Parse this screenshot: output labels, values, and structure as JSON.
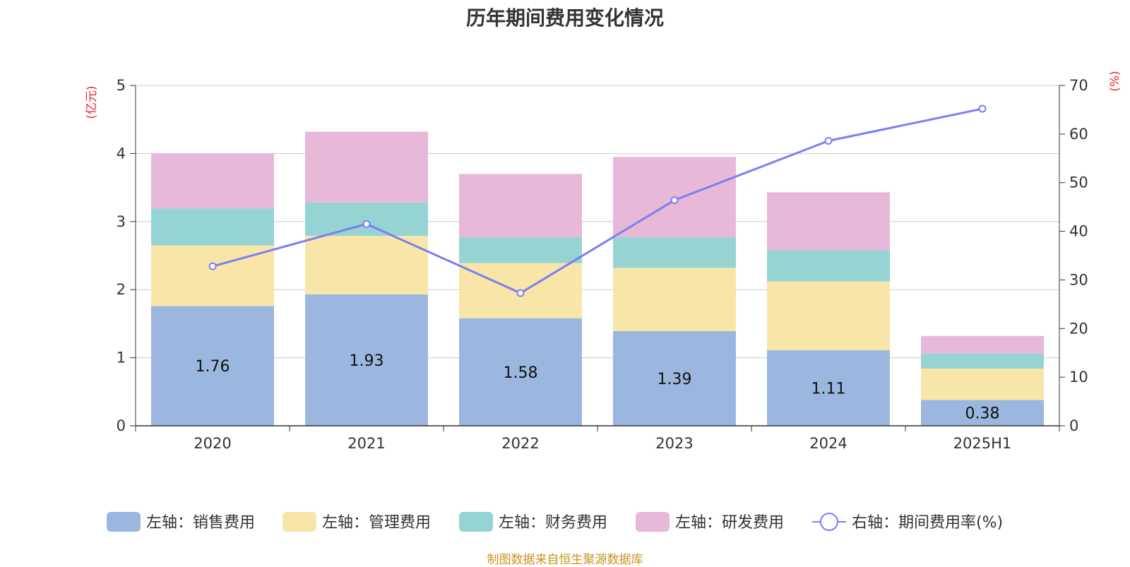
{
  "chart_data": {
    "type": "bar",
    "title": "历年期间费用变化情况",
    "categories": [
      "2020",
      "2021",
      "2022",
      "2023",
      "2024",
      "2025H1"
    ],
    "stacked": true,
    "left_axis": {
      "unit": "(亿元)",
      "ylim": [
        0,
        5
      ],
      "ticks": [
        "0",
        "1",
        "2",
        "3",
        "4",
        "5"
      ]
    },
    "right_axis": {
      "unit": "(%)",
      "ylim": [
        0,
        70
      ],
      "ticks": [
        "0",
        "10",
        "20",
        "30",
        "40",
        "50",
        "60",
        "70"
      ]
    },
    "series": [
      {
        "name": "左轴：销售费用",
        "type": "bar",
        "axis": "left",
        "color": "#9bb7e0",
        "values": [
          1.76,
          1.93,
          1.58,
          1.39,
          1.11,
          0.38
        ],
        "labels": [
          "1.76",
          "1.93",
          "1.58",
          "1.39",
          "1.11",
          "0.38"
        ]
      },
      {
        "name": "左轴：管理费用",
        "type": "bar",
        "axis": "left",
        "color": "#f8e6a8",
        "values": [
          0.89,
          0.86,
          0.81,
          0.93,
          1.01,
          0.46
        ]
      },
      {
        "name": "左轴：财务费用",
        "type": "bar",
        "axis": "left",
        "color": "#96d4d4",
        "values": [
          0.54,
          0.49,
          0.38,
          0.45,
          0.46,
          0.22
        ]
      },
      {
        "name": "左轴：研发费用",
        "type": "bar",
        "axis": "left",
        "color": "#e8b8d8",
        "values": [
          0.81,
          1.04,
          0.93,
          1.18,
          0.85,
          0.26
        ]
      },
      {
        "name": "右轴：期间费用率(%)",
        "type": "line",
        "axis": "right",
        "color": "#7b7ff0",
        "values": [
          32.8,
          41.5,
          27.3,
          46.4,
          58.6,
          65.2
        ]
      }
    ],
    "grid": true,
    "legend_position": "bottom"
  },
  "footer": {
    "source": "制图数据来自恒生聚源数据库"
  }
}
